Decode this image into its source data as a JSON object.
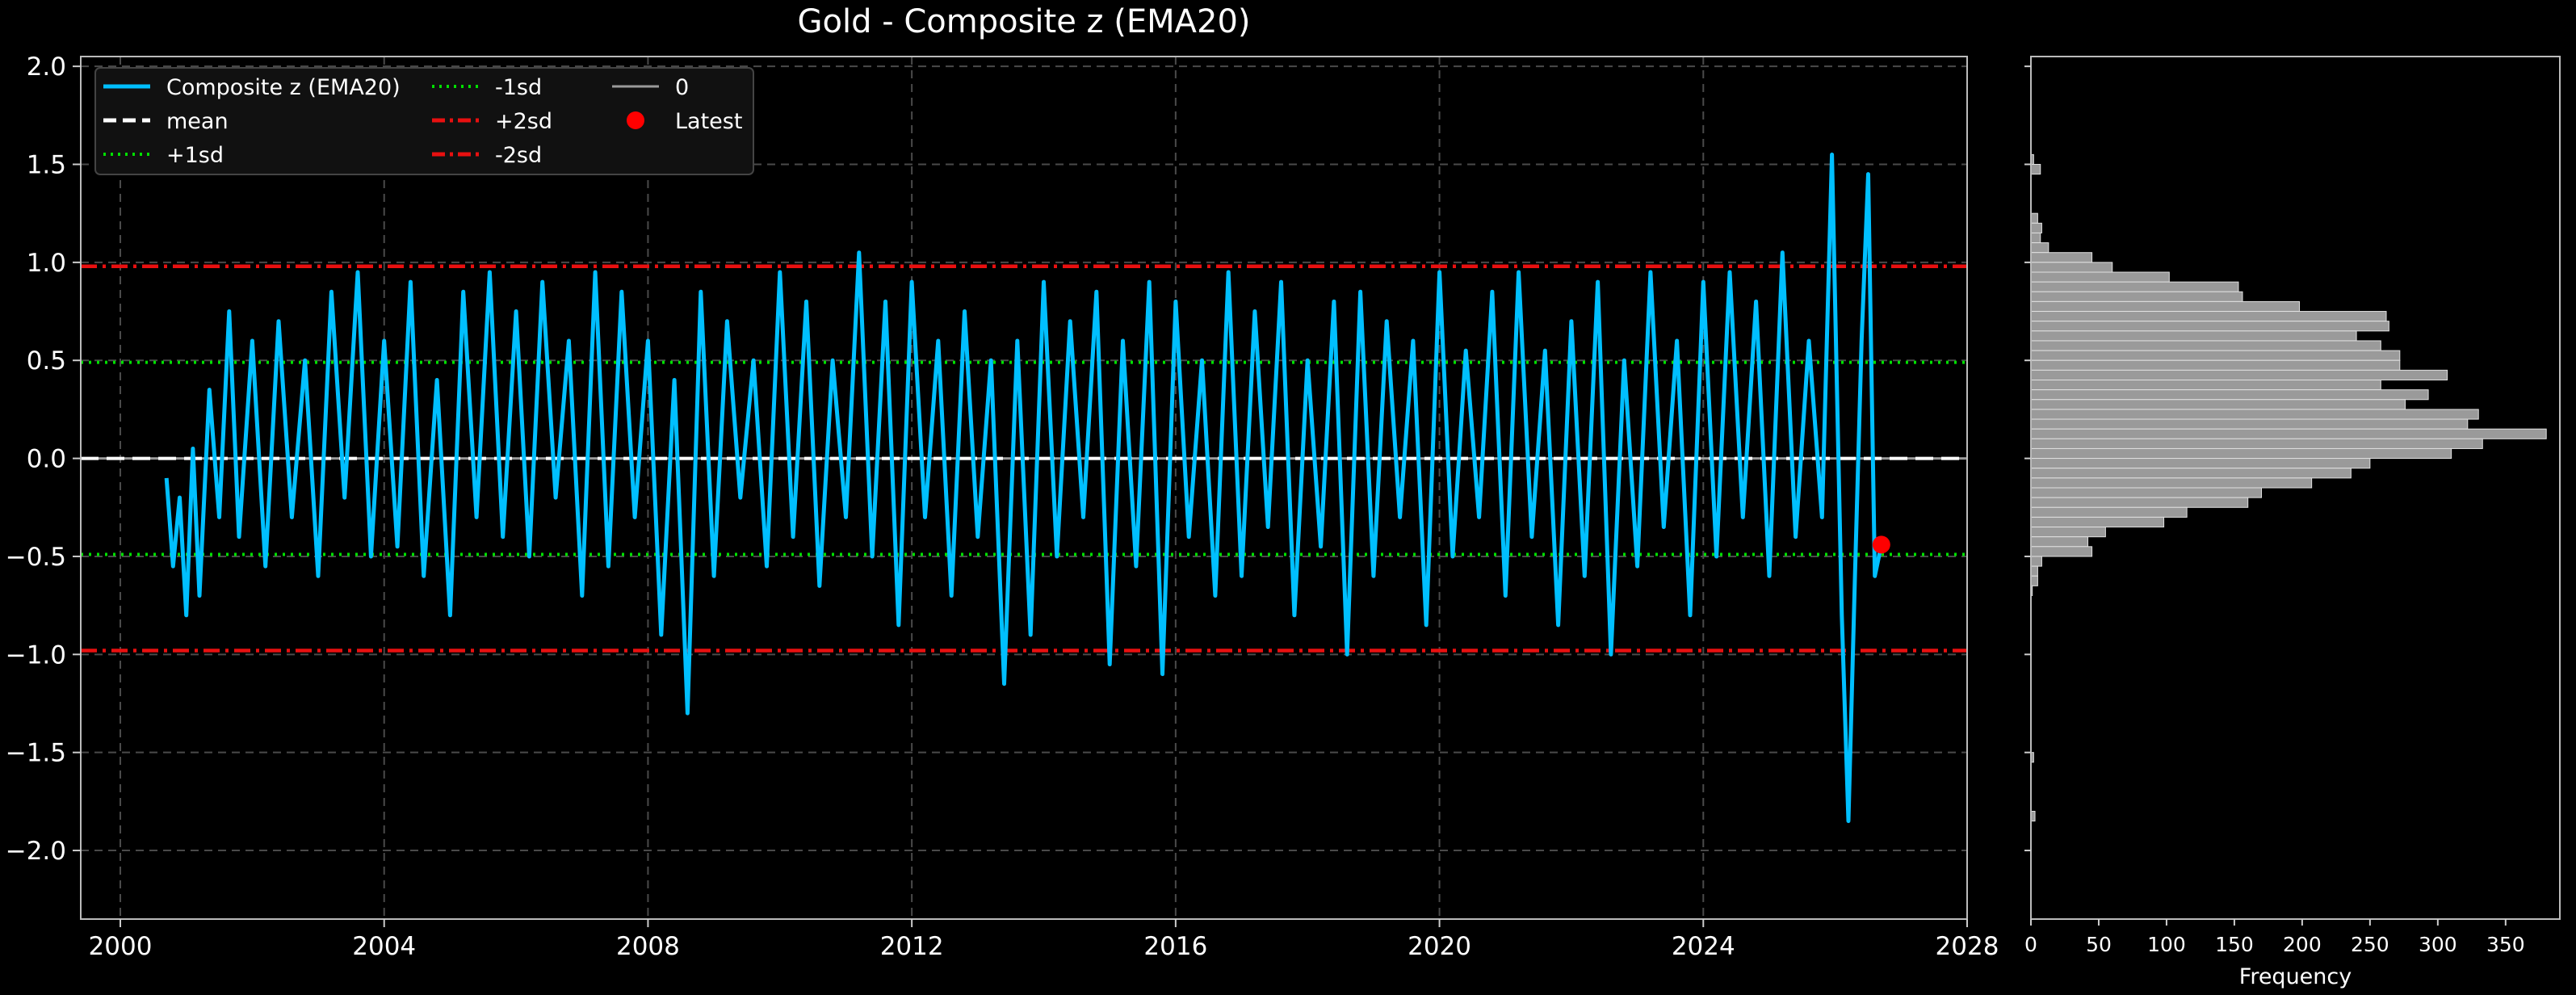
{
  "title": "Gold - Composite z (EMA20)",
  "colors": {
    "background": "#000000",
    "series": "#00bfff",
    "mean": "#ffffff",
    "sd1": "#00e000",
    "sd2": "#e81010",
    "zero": "#9a9a9a",
    "latest": "#ff0000",
    "hist": "#9a9a9a",
    "grid": "#4a4a4a",
    "text": "#ffffff"
  },
  "chart_data": [
    {
      "type": "line",
      "title": "Gold - Composite z (EMA20)",
      "xlabel": "",
      "ylabel": "",
      "xlim": [
        1999.4,
        2028
      ],
      "ylim": [
        -2.35,
        2.05
      ],
      "xticks": [
        "2000",
        "2004",
        "2008",
        "2012",
        "2016",
        "2020",
        "2024",
        "2028"
      ],
      "yticks": [
        "2.0",
        "1.5",
        "1.0",
        "0.5",
        "0.0",
        "−0.5",
        "−1.0",
        "−1.5",
        "−2.0"
      ],
      "ytick_values": [
        2.0,
        1.5,
        1.0,
        0.5,
        0.0,
        -0.5,
        -1.0,
        -1.5,
        -2.0
      ],
      "grid": true,
      "legend_placement": "top-left",
      "legend": [
        "Composite z (EMA20)",
        "mean",
        "+1sd",
        "-1sd",
        "+2sd",
        "-2sd",
        "0",
        "Latest"
      ],
      "reference_lines": {
        "mean": 0.0,
        "plus1sd": 0.49,
        "minus1sd": -0.49,
        "plus2sd": 0.98,
        "minus2sd": -0.98,
        "zero": 0.0
      },
      "latest": {
        "x": 2026.7,
        "y": -0.44
      },
      "series": [
        {
          "name": "Composite z (EMA20)",
          "x": [
            2000.7,
            2000.8,
            2000.9,
            2001.0,
            2001.1,
            2001.2,
            2001.35,
            2001.5,
            2001.65,
            2001.8,
            2002.0,
            2002.2,
            2002.4,
            2002.6,
            2002.8,
            2003.0,
            2003.2,
            2003.4,
            2003.6,
            2003.8,
            2004.0,
            2004.2,
            2004.4,
            2004.6,
            2004.8,
            2005.0,
            2005.2,
            2005.4,
            2005.6,
            2005.8,
            2006.0,
            2006.2,
            2006.4,
            2006.6,
            2006.8,
            2007.0,
            2007.2,
            2007.4,
            2007.6,
            2007.8,
            2008.0,
            2008.2,
            2008.4,
            2008.6,
            2008.8,
            2009.0,
            2009.2,
            2009.4,
            2009.6,
            2009.8,
            2010.0,
            2010.2,
            2010.4,
            2010.6,
            2010.8,
            2011.0,
            2011.2,
            2011.4,
            2011.6,
            2011.8,
            2012.0,
            2012.2,
            2012.4,
            2012.6,
            2012.8,
            2013.0,
            2013.2,
            2013.4,
            2013.6,
            2013.8,
            2014.0,
            2014.2,
            2014.4,
            2014.6,
            2014.8,
            2015.0,
            2015.2,
            2015.4,
            2015.6,
            2015.8,
            2016.0,
            2016.2,
            2016.4,
            2016.6,
            2016.8,
            2017.0,
            2017.2,
            2017.4,
            2017.6,
            2017.8,
            2018.0,
            2018.2,
            2018.4,
            2018.6,
            2018.8,
            2019.0,
            2019.2,
            2019.4,
            2019.6,
            2019.8,
            2020.0,
            2020.2,
            2020.4,
            2020.6,
            2020.8,
            2021.0,
            2021.2,
            2021.4,
            2021.6,
            2021.8,
            2022.0,
            2022.2,
            2022.4,
            2022.6,
            2022.8,
            2023.0,
            2023.2,
            2023.4,
            2023.6,
            2023.8,
            2024.0,
            2024.2,
            2024.4,
            2024.6,
            2024.8,
            2025.0,
            2025.2,
            2025.4,
            2025.6,
            2025.8,
            2025.95,
            2026.1,
            2026.2,
            2026.3,
            2026.4,
            2026.5,
            2026.6,
            2026.7
          ],
          "y": [
            -0.1,
            -0.55,
            -0.2,
            -0.8,
            0.05,
            -0.7,
            0.35,
            -0.3,
            0.75,
            -0.4,
            0.6,
            -0.55,
            0.7,
            -0.3,
            0.5,
            -0.6,
            0.85,
            -0.2,
            0.95,
            -0.5,
            0.6,
            -0.45,
            0.9,
            -0.6,
            0.4,
            -0.8,
            0.85,
            -0.3,
            0.95,
            -0.4,
            0.75,
            -0.5,
            0.9,
            -0.2,
            0.6,
            -0.7,
            0.95,
            -0.55,
            0.85,
            -0.3,
            0.6,
            -0.9,
            0.4,
            -1.3,
            0.85,
            -0.6,
            0.7,
            -0.2,
            0.5,
            -0.55,
            0.95,
            -0.4,
            0.8,
            -0.65,
            0.5,
            -0.3,
            1.05,
            -0.5,
            0.8,
            -0.85,
            0.9,
            -0.3,
            0.6,
            -0.7,
            0.75,
            -0.4,
            0.5,
            -1.15,
            0.6,
            -0.9,
            0.9,
            -0.5,
            0.7,
            -0.3,
            0.85,
            -1.05,
            0.6,
            -0.55,
            0.9,
            -1.1,
            0.8,
            -0.4,
            0.5,
            -0.7,
            0.95,
            -0.6,
            0.75,
            -0.35,
            0.9,
            -0.8,
            0.5,
            -0.45,
            0.8,
            -1.0,
            0.85,
            -0.6,
            0.7,
            -0.3,
            0.6,
            -0.85,
            0.95,
            -0.5,
            0.55,
            -0.3,
            0.85,
            -0.7,
            0.95,
            -0.4,
            0.55,
            -0.85,
            0.7,
            -0.6,
            0.9,
            -1.0,
            0.5,
            -0.55,
            0.95,
            -0.35,
            0.6,
            -0.8,
            0.9,
            -0.5,
            0.95,
            -0.3,
            0.8,
            -0.6,
            1.05,
            -0.4,
            0.6,
            -0.3,
            1.55,
            -0.8,
            -1.85,
            -0.6,
            0.6,
            1.45,
            -0.6,
            -0.44
          ]
        }
      ]
    },
    {
      "type": "bar",
      "orientation": "horizontal",
      "xlabel": "Frequency",
      "xticks": [
        "0",
        "50",
        "100",
        "150",
        "200",
        "250",
        "300",
        "350"
      ],
      "xtick_values": [
        0,
        50,
        100,
        150,
        200,
        250,
        300,
        350
      ],
      "xlim": [
        0,
        390
      ],
      "ylim": [
        -2.35,
        2.05
      ],
      "bins": [
        {
          "y": 1.525,
          "count": 2
        },
        {
          "y": 1.475,
          "count": 7
        },
        {
          "y": 1.225,
          "count": 5
        },
        {
          "y": 1.175,
          "count": 8
        },
        {
          "y": 1.125,
          "count": 7
        },
        {
          "y": 1.075,
          "count": 13
        },
        {
          "y": 1.025,
          "count": 45
        },
        {
          "y": 0.975,
          "count": 60
        },
        {
          "y": 0.925,
          "count": 102
        },
        {
          "y": 0.875,
          "count": 153
        },
        {
          "y": 0.825,
          "count": 156
        },
        {
          "y": 0.775,
          "count": 198
        },
        {
          "y": 0.725,
          "count": 262
        },
        {
          "y": 0.675,
          "count": 264
        },
        {
          "y": 0.625,
          "count": 240
        },
        {
          "y": 0.575,
          "count": 258
        },
        {
          "y": 0.525,
          "count": 272
        },
        {
          "y": 0.475,
          "count": 272
        },
        {
          "y": 0.425,
          "count": 307
        },
        {
          "y": 0.375,
          "count": 258
        },
        {
          "y": 0.325,
          "count": 293
        },
        {
          "y": 0.275,
          "count": 276
        },
        {
          "y": 0.225,
          "count": 330
        },
        {
          "y": 0.175,
          "count": 322
        },
        {
          "y": 0.125,
          "count": 380
        },
        {
          "y": 0.075,
          "count": 333
        },
        {
          "y": 0.025,
          "count": 310
        },
        {
          "y": -0.025,
          "count": 250
        },
        {
          "y": -0.075,
          "count": 236
        },
        {
          "y": -0.125,
          "count": 207
        },
        {
          "y": -0.175,
          "count": 170
        },
        {
          "y": -0.225,
          "count": 160
        },
        {
          "y": -0.275,
          "count": 115
        },
        {
          "y": -0.325,
          "count": 98
        },
        {
          "y": -0.375,
          "count": 55
        },
        {
          "y": -0.425,
          "count": 42
        },
        {
          "y": -0.475,
          "count": 45
        },
        {
          "y": -0.525,
          "count": 8
        },
        {
          "y": -0.575,
          "count": 5
        },
        {
          "y": -0.625,
          "count": 5
        },
        {
          "y": -0.675,
          "count": 1
        },
        {
          "y": -1.525,
          "count": 2
        },
        {
          "y": -1.825,
          "count": 3
        }
      ]
    }
  ]
}
